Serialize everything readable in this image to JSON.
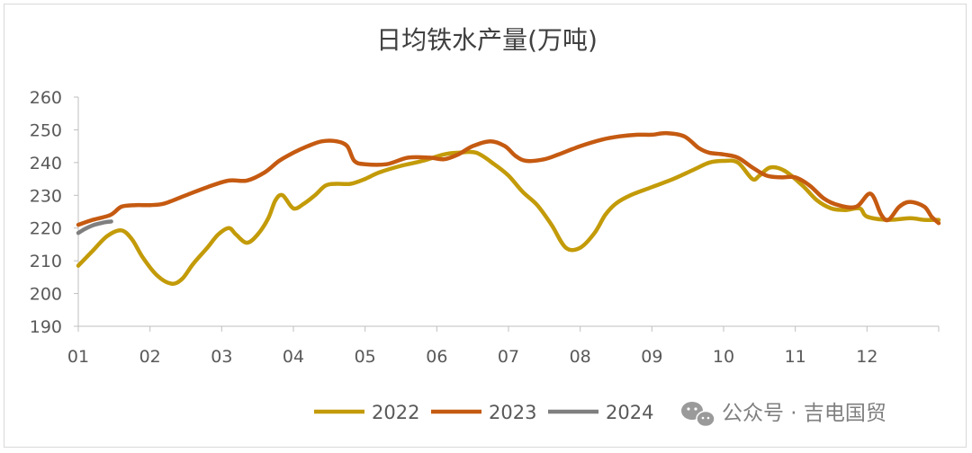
{
  "chart_data": {
    "type": "line",
    "title": "日均铁水产量(万吨)",
    "xlabel": "",
    "ylabel": "",
    "ylim": [
      190,
      260
    ],
    "yticks": [
      190,
      200,
      210,
      220,
      230,
      240,
      250,
      260
    ],
    "xlim": [
      1,
      13
    ],
    "xticks": [
      "01",
      "02",
      "03",
      "04",
      "05",
      "06",
      "07",
      "08",
      "09",
      "10",
      "11",
      "12"
    ],
    "grid": false,
    "legend_position": "bottom",
    "series": [
      {
        "name": "2022",
        "color": "#c39b09",
        "points": [
          [
            1.0,
            208.5
          ],
          [
            1.2,
            213
          ],
          [
            1.4,
            217.5
          ],
          [
            1.6,
            219.3
          ],
          [
            1.75,
            216.5
          ],
          [
            1.9,
            211
          ],
          [
            2.1,
            205.5
          ],
          [
            2.3,
            203
          ],
          [
            2.45,
            204.5
          ],
          [
            2.6,
            209
          ],
          [
            2.8,
            214
          ],
          [
            2.95,
            218
          ],
          [
            3.1,
            220
          ],
          [
            3.2,
            218
          ],
          [
            3.35,
            215.5
          ],
          [
            3.5,
            218
          ],
          [
            3.65,
            223
          ],
          [
            3.75,
            228.5
          ],
          [
            3.85,
            230
          ],
          [
            4.0,
            226
          ],
          [
            4.15,
            227.5
          ],
          [
            4.3,
            230
          ],
          [
            4.45,
            233
          ],
          [
            4.6,
            233.5
          ],
          [
            4.8,
            233.5
          ],
          [
            5.0,
            235
          ],
          [
            5.2,
            237
          ],
          [
            5.5,
            239
          ],
          [
            5.8,
            240.5
          ],
          [
            6.1,
            242.5
          ],
          [
            6.3,
            243
          ],
          [
            6.55,
            243
          ],
          [
            6.8,
            239.5
          ],
          [
            7.0,
            236
          ],
          [
            7.2,
            231
          ],
          [
            7.4,
            227
          ],
          [
            7.6,
            221
          ],
          [
            7.8,
            214
          ],
          [
            8.0,
            214
          ],
          [
            8.2,
            218.5
          ],
          [
            8.35,
            224
          ],
          [
            8.5,
            227.5
          ],
          [
            8.7,
            230
          ],
          [
            9.0,
            232.5
          ],
          [
            9.3,
            235
          ],
          [
            9.6,
            238
          ],
          [
            9.8,
            240
          ],
          [
            10.0,
            240.5
          ],
          [
            10.2,
            240
          ],
          [
            10.4,
            235
          ],
          [
            10.5,
            236
          ],
          [
            10.65,
            238.5
          ],
          [
            10.85,
            237.5
          ],
          [
            11.1,
            233
          ],
          [
            11.3,
            228.5
          ],
          [
            11.5,
            226
          ],
          [
            11.7,
            225.5
          ],
          [
            11.9,
            226
          ],
          [
            12.0,
            223.5
          ],
          [
            12.3,
            222.5
          ],
          [
            12.6,
            223
          ],
          [
            12.8,
            222.5
          ],
          [
            13.0,
            222.5
          ]
        ]
      },
      {
        "name": "2023",
        "color": "#c55a11",
        "points": [
          [
            1.0,
            221
          ],
          [
            1.2,
            222.5
          ],
          [
            1.45,
            224
          ],
          [
            1.6,
            226.5
          ],
          [
            1.8,
            227
          ],
          [
            2.0,
            227
          ],
          [
            2.2,
            227.5
          ],
          [
            2.5,
            230
          ],
          [
            2.8,
            232.5
          ],
          [
            3.1,
            234.5
          ],
          [
            3.35,
            234.5
          ],
          [
            3.6,
            237
          ],
          [
            3.8,
            240.5
          ],
          [
            4.0,
            243
          ],
          [
            4.2,
            245
          ],
          [
            4.4,
            246.5
          ],
          [
            4.6,
            246.5
          ],
          [
            4.75,
            245
          ],
          [
            4.85,
            240.5
          ],
          [
            5.0,
            239.5
          ],
          [
            5.3,
            239.5
          ],
          [
            5.6,
            241.5
          ],
          [
            5.9,
            241.5
          ],
          [
            6.1,
            241
          ],
          [
            6.3,
            242.5
          ],
          [
            6.5,
            245
          ],
          [
            6.75,
            246.5
          ],
          [
            6.95,
            245
          ],
          [
            7.1,
            242
          ],
          [
            7.25,
            240.5
          ],
          [
            7.5,
            241
          ],
          [
            7.7,
            242.5
          ],
          [
            8.0,
            245
          ],
          [
            8.3,
            247
          ],
          [
            8.55,
            248
          ],
          [
            8.8,
            248.5
          ],
          [
            9.0,
            248.5
          ],
          [
            9.2,
            249
          ],
          [
            9.45,
            248
          ],
          [
            9.65,
            244.5
          ],
          [
            9.8,
            243
          ],
          [
            10.0,
            242.5
          ],
          [
            10.2,
            241.5
          ],
          [
            10.4,
            238.5
          ],
          [
            10.6,
            236
          ],
          [
            10.8,
            235.5
          ],
          [
            11.0,
            235.5
          ],
          [
            11.2,
            233
          ],
          [
            11.4,
            229
          ],
          [
            11.6,
            227
          ],
          [
            11.85,
            226.5
          ],
          [
            12.05,
            230.5
          ],
          [
            12.2,
            224
          ],
          [
            12.3,
            222.5
          ],
          [
            12.45,
            226.5
          ],
          [
            12.6,
            228
          ],
          [
            12.8,
            226.5
          ],
          [
            12.9,
            223.5
          ],
          [
            13.0,
            221.5
          ]
        ]
      },
      {
        "name": "2024",
        "color": "#7f7f7f",
        "points": [
          [
            1.0,
            218.5
          ],
          [
            1.1,
            219.8
          ],
          [
            1.2,
            220.8
          ],
          [
            1.3,
            221.4
          ],
          [
            1.38,
            221.8
          ],
          [
            1.46,
            222
          ]
        ]
      }
    ]
  },
  "watermark": {
    "text": "公众号 · 吉电国贸",
    "icon": "wechat-icon"
  }
}
